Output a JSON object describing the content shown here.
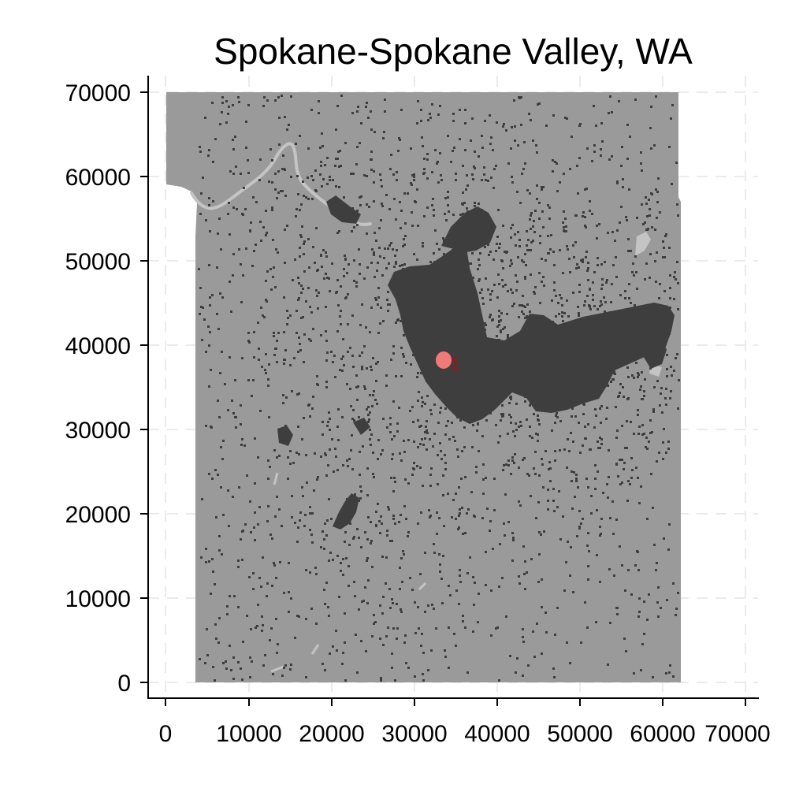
{
  "chart_data": {
    "type": "map",
    "title": "Spokane-Spokane Valley, WA",
    "xlabel": "",
    "ylabel": "",
    "xlim": [
      0,
      70000
    ],
    "ylim": [
      0,
      70000
    ],
    "x_ticks": [
      0,
      10000,
      20000,
      30000,
      40000,
      50000,
      60000,
      70000
    ],
    "y_ticks": [
      0,
      10000,
      20000,
      30000,
      40000,
      50000,
      60000,
      70000
    ],
    "x_tick_labels": [
      "0",
      "10000",
      "20000",
      "30000",
      "40000",
      "50000",
      "60000",
      "70000"
    ],
    "y_tick_labels": [
      "0",
      "10000",
      "20000",
      "30000",
      "40000",
      "50000",
      "60000",
      "70000"
    ],
    "grid": true,
    "legend": "none",
    "colors": {
      "land": "#9a9a9a",
      "developed": "#3e3e3e",
      "water": "#c8c8c8",
      "center": "#f07a7a",
      "center_label": "#cc0000",
      "grid": "#ebebeb"
    },
    "developed_clusters": [
      {
        "x": 36000,
        "y": 41000
      },
      {
        "x": 43000,
        "y": 39000
      },
      {
        "x": 50000,
        "y": 38500
      },
      {
        "x": 57000,
        "y": 41000
      },
      {
        "x": 22000,
        "y": 21000
      },
      {
        "x": 20500,
        "y": 55000
      },
      {
        "x": 31000,
        "y": 48000
      }
    ],
    "center_marker": {
      "x": 33700,
      "y": 38300,
      "label": "1"
    }
  }
}
